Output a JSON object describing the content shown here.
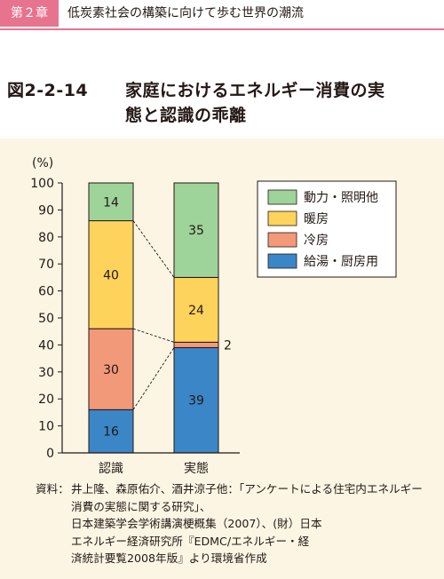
{
  "header": {
    "chapter": "第２章",
    "title": "低炭素社会の構築に向けて歩む世界の潮流",
    "accent_color": "#e8738f"
  },
  "figure": {
    "number": "図2-2-14",
    "title_line1": "家庭におけるエネルギー消費の実",
    "title_line2": "態と認識の乖離"
  },
  "chart_data": {
    "type": "bar",
    "stacked": true,
    "unit_label": "(%)",
    "ylim": [
      0,
      100
    ],
    "yticks": [
      0,
      10,
      20,
      30,
      40,
      50,
      60,
      70,
      80,
      90,
      100
    ],
    "categories": [
      "認識",
      "実態"
    ],
    "series": [
      {
        "name": "給湯・厨房用",
        "color": "#3b86c6",
        "values": [
          16,
          39
        ]
      },
      {
        "name": "冷房",
        "color": "#f2997a",
        "values": [
          30,
          2
        ]
      },
      {
        "name": "暖房",
        "color": "#fdd35c",
        "values": [
          40,
          24
        ]
      },
      {
        "name": "動力・照明他",
        "color": "#9ed39a",
        "values": [
          14,
          35
        ]
      }
    ],
    "legend_position": "top-right",
    "connector_lines": "dashed"
  },
  "source": {
    "label": "資料：",
    "text": "井上隆、森原佑介、酒井涼子他：「アンケートによる住宅内エネルギー消費の実態に関する研究」、\n日本建築学会学術講演梗概集（2007）、(財）日本\nエネルギー経済研究所『EDMC/エネルギー・経\n済統計要覧2008年版』より環境省作成"
  }
}
